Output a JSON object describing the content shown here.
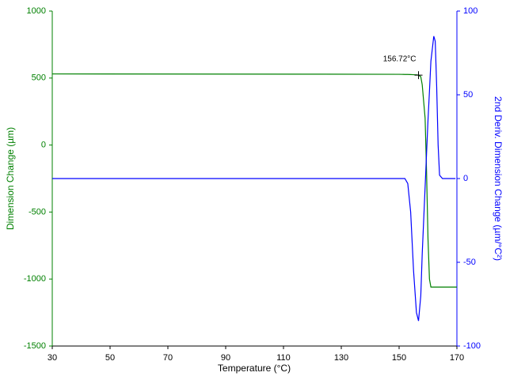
{
  "chart_data": {
    "type": "line",
    "xlabel": "Temperature (°C)",
    "ylabel": "Dimension Change (µm)",
    "y2label": "2nd Deriv. Dimension Change (µm/°C²)",
    "x": [
      30,
      122,
      150,
      152,
      153,
      154,
      155,
      156,
      156.72,
      157.5,
      158,
      159,
      159.5,
      160,
      160.5,
      161,
      162,
      162.5,
      163,
      163.5,
      164,
      165,
      169.5,
      170
    ],
    "series": [
      {
        "name": "Dimension Change",
        "color": "#008000",
        "axis": "y",
        "values": [
          531,
          529,
          528,
          527,
          527,
          526,
          525,
          524,
          522,
          510,
          450,
          200,
          -200,
          -700,
          -1000,
          -1060,
          -1060,
          -1060,
          -1060,
          -1060,
          -1060,
          -1060,
          -1060,
          -1060
        ]
      },
      {
        "name": "2nd Deriv. Dimension Change",
        "color": "#0000ff",
        "axis": "y2",
        "values": [
          0,
          0,
          0,
          0,
          -3,
          -20,
          -55,
          -80,
          -85,
          -70,
          -45,
          -5,
          15,
          35,
          52,
          70,
          85,
          82,
          55,
          20,
          2,
          0,
          0,
          null
        ]
      }
    ],
    "annotation": {
      "text": "156.72°C",
      "x": 156.72,
      "y": 522
    },
    "xlim": [
      30,
      170
    ],
    "xticks": [
      30,
      50,
      70,
      90,
      110,
      130,
      150,
      170
    ],
    "ylim": [
      -1500,
      1000
    ],
    "yticks": [
      -1500,
      -1000,
      -500,
      0,
      500,
      1000
    ],
    "y2lim": [
      -100,
      100
    ],
    "y2ticks": [
      -100,
      -50,
      0,
      50,
      100
    ]
  }
}
